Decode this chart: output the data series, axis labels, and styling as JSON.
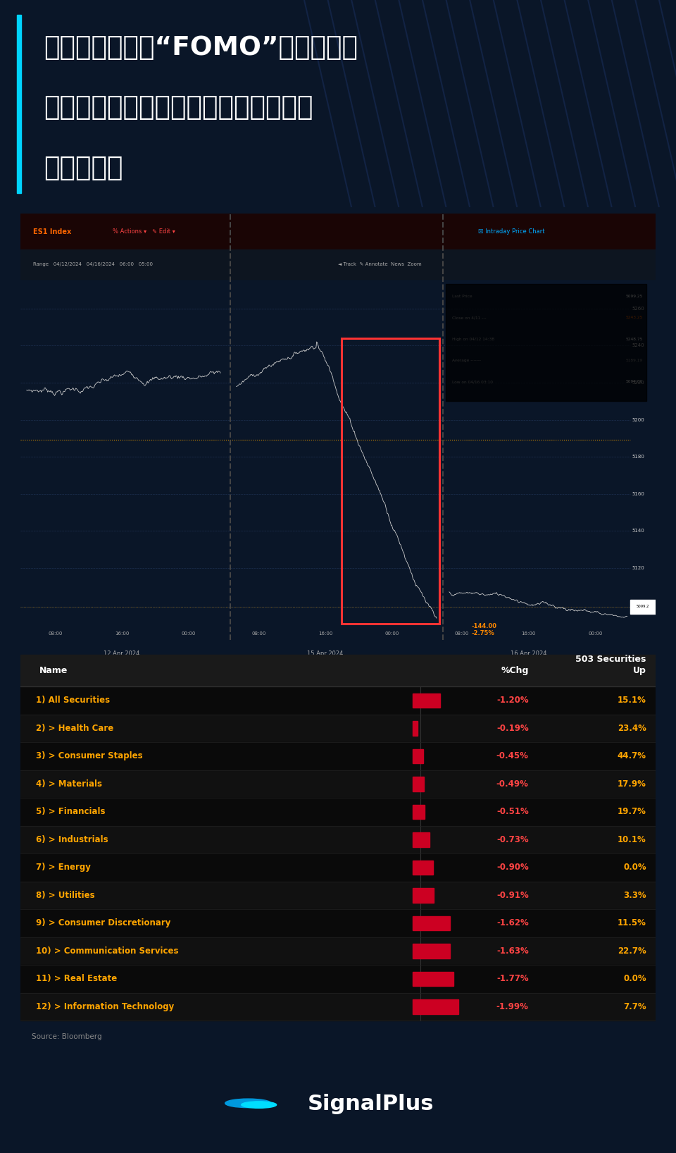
{
  "title_line1": "在连续几个月的“FOMO”后，美国投",
  "title_line2": "资者的行为出现显著变化，在纽约开盘",
  "title_line3": "时大举抛售",
  "bg_color": "#0a1628",
  "title_bg": "#0d1f3c",
  "accent_cyan": "#00d4ff",
  "title_text_color": "#ffffff",
  "table_name_color": "#ffa500",
  "table_pct_color": "#ff4444",
  "table_up_color": "#ffa500",
  "table_header_text": "#ffffff",
  "source_text": "Source: Bloomberg",
  "securities_label": "503 Securities",
  "col_name": "Name",
  "col_pct": "%Chg",
  "col_up": "Up",
  "rows": [
    {
      "num": "1)",
      "name": "All Securities",
      "bar_size": 1.2,
      "pct": "-1.20%",
      "up": "15.1%"
    },
    {
      "num": "2)",
      "name": "> Health Care",
      "bar_size": 0.19,
      "pct": "-0.19%",
      "up": "23.4%"
    },
    {
      "num": "3)",
      "name": "> Consumer Staples",
      "bar_size": 0.45,
      "pct": "-0.45%",
      "up": "44.7%"
    },
    {
      "num": "4)",
      "name": "> Materials",
      "bar_size": 0.49,
      "pct": "-0.49%",
      "up": "17.9%"
    },
    {
      "num": "5)",
      "name": "> Financials",
      "bar_size": 0.51,
      "pct": "-0.51%",
      "up": "19.7%"
    },
    {
      "num": "6)",
      "name": "> Industrials",
      "bar_size": 0.73,
      "pct": "-0.73%",
      "up": "10.1%"
    },
    {
      "num": "7)",
      "name": "> Energy",
      "bar_size": 0.9,
      "pct": "-0.90%",
      "up": "0.0%"
    },
    {
      "num": "8)",
      "name": "> Utilities",
      "bar_size": 0.91,
      "pct": "-0.91%",
      "up": "3.3%"
    },
    {
      "num": "9)",
      "name": "> Consumer Discretionary",
      "bar_size": 1.62,
      "pct": "-1.62%",
      "up": "11.5%"
    },
    {
      "num": "10)",
      "name": "> Communication Services",
      "bar_size": 1.63,
      "pct": "-1.63%",
      "up": "22.7%"
    },
    {
      "num": "11)",
      "name": "> Real Estate",
      "bar_size": 1.77,
      "pct": "-1.77%",
      "up": "0.0%"
    },
    {
      "num": "12)",
      "name": "> Information Technology",
      "bar_size": 1.99,
      "pct": "-1.99%",
      "up": "7.7%"
    }
  ],
  "signalplus_text": "SignalPlus"
}
